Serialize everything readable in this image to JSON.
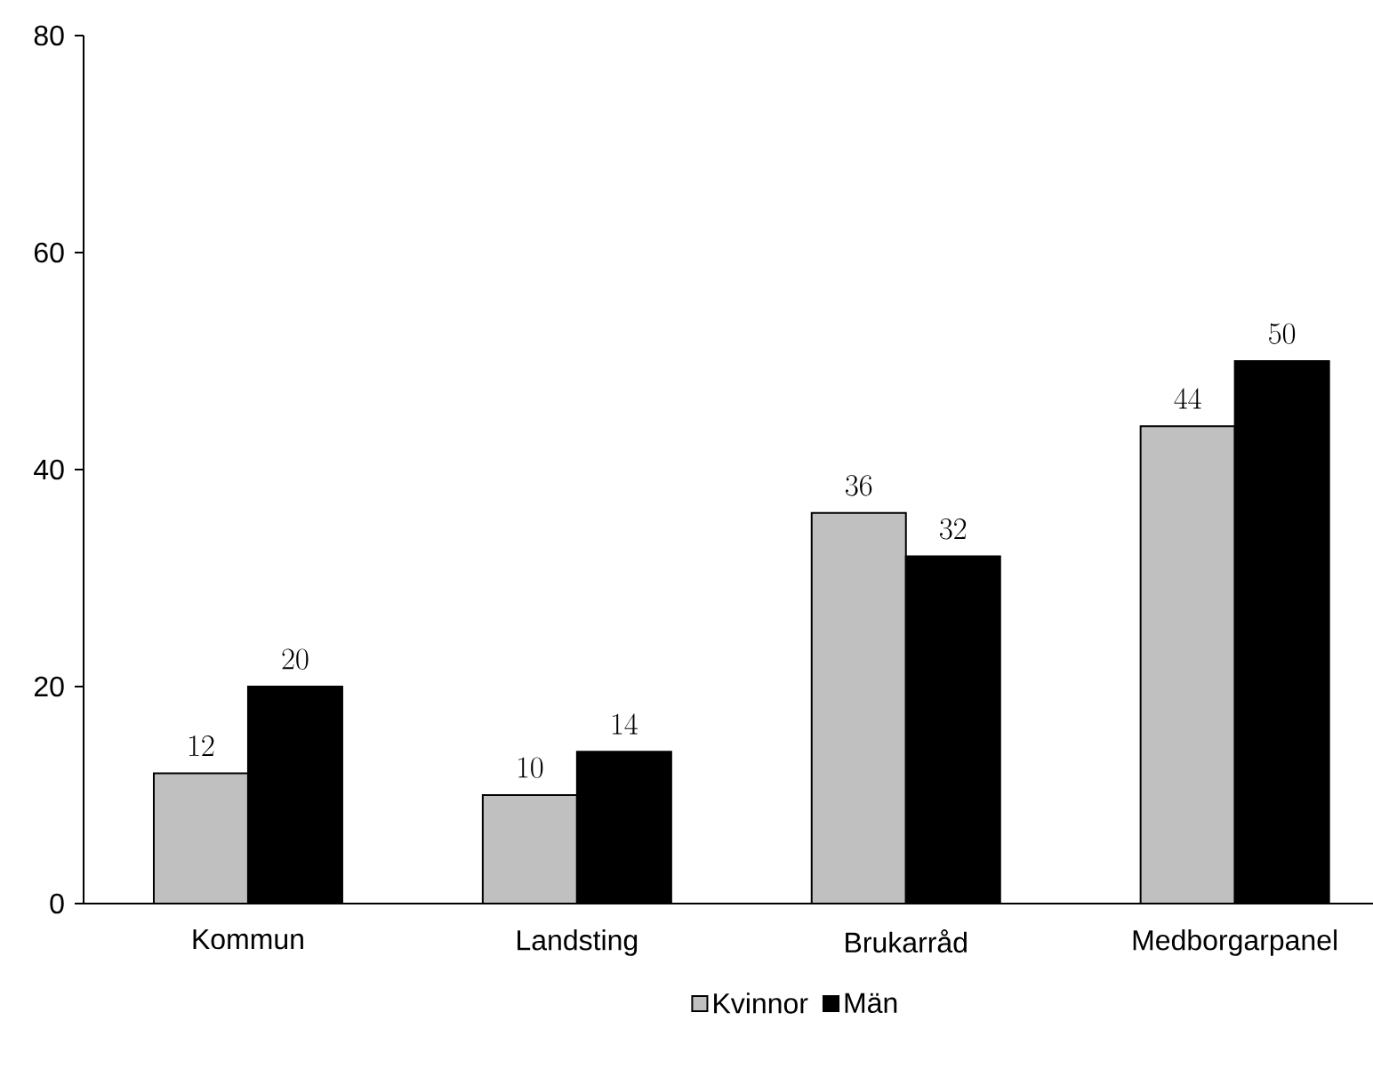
{
  "chart_data": {
    "type": "bar",
    "categories": [
      "Kommun",
      "Landsting",
      "Brukarråd",
      "Medborgarpanel"
    ],
    "series": [
      {
        "name": "Kvinnor",
        "color": "#c0c0c0",
        "values": [
          12,
          10,
          36,
          44
        ]
      },
      {
        "name": "Män",
        "color": "#000000",
        "values": [
          20,
          14,
          32,
          50
        ]
      }
    ],
    "ylim": [
      0,
      80
    ],
    "yticks": [
      0,
      20,
      40,
      60,
      80
    ],
    "data_labels": true,
    "legend": "bottom",
    "grid": false
  }
}
